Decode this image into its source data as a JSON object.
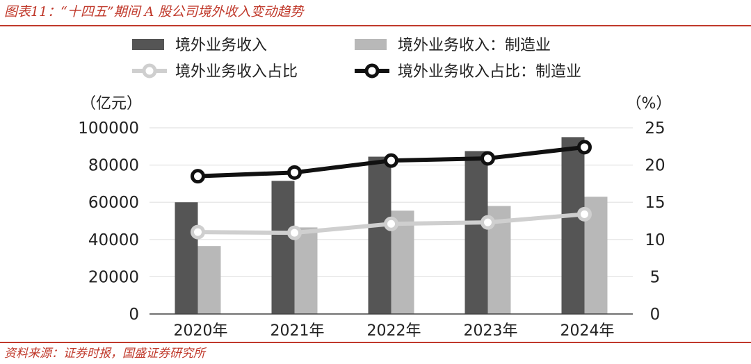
{
  "figure": {
    "title": "图表11：“十四五”期间 A 股公司境外收入变动趋势",
    "source": "资料来源：证券时报，国盛证券研究所"
  },
  "chart_data": {
    "type": "bar",
    "categories": [
      "2020年",
      "2021年",
      "2022年",
      "2023年",
      "2024年"
    ],
    "series": [
      {
        "name": "境外业务收入",
        "kind": "bar",
        "axis": "left",
        "color": "#555555",
        "values": [
          60000,
          71500,
          84500,
          87500,
          95000
        ]
      },
      {
        "name": "境外业务收入：制造业",
        "kind": "bar",
        "axis": "left",
        "color": "#b8b8b8",
        "values": [
          36500,
          46500,
          55500,
          58000,
          63000
        ]
      },
      {
        "name": "境外业务收入占比",
        "kind": "line",
        "axis": "right",
        "color": "#cfcfcf",
        "values": [
          11.0,
          10.9,
          12.1,
          12.3,
          13.4
        ]
      },
      {
        "name": "境外业务收入占比：制造业",
        "kind": "line",
        "axis": "right",
        "color": "#111111",
        "values": [
          18.5,
          19.0,
          20.6,
          20.9,
          22.4
        ]
      }
    ],
    "y_left": {
      "unit_label": "（亿元）",
      "ticks": [
        "100000",
        "80000",
        "60000",
        "40000",
        "20000",
        "0"
      ],
      "range": [
        0,
        100000
      ]
    },
    "y_right": {
      "unit_label": "（%）",
      "ticks": [
        "25",
        "20",
        "15",
        "10",
        "5",
        "0"
      ],
      "range": [
        0,
        25
      ]
    },
    "grid": true,
    "legend_position": "top"
  }
}
